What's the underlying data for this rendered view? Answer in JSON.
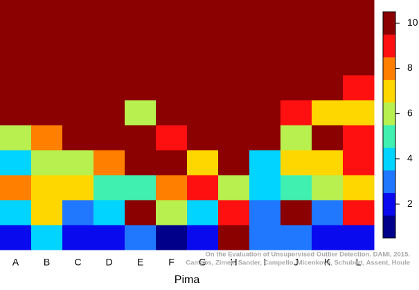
{
  "chart_data": {
    "type": "heatmap",
    "xlabel": "Pima",
    "categories": [
      "A",
      "B",
      "C",
      "D",
      "E",
      "F",
      "G",
      "H",
      "I",
      "J",
      "K",
      "L"
    ],
    "z": [
      [
        2,
        4,
        2,
        2,
        3,
        1,
        2,
        10,
        3,
        3,
        2,
        2
      ],
      [
        4,
        7,
        3,
        4,
        10,
        6,
        4,
        9,
        3,
        10,
        3,
        9
      ],
      [
        8,
        7,
        7,
        5,
        5,
        8,
        9,
        6,
        4,
        5,
        6,
        7
      ],
      [
        4,
        6,
        6,
        8,
        10,
        10,
        7,
        10,
        4,
        7,
        7,
        9
      ],
      [
        6,
        8,
        10,
        10,
        10,
        9,
        10,
        10,
        10,
        6,
        10,
        9
      ],
      [
        10,
        10,
        10,
        10,
        6,
        10,
        10,
        10,
        10,
        9,
        7,
        7
      ],
      [
        10,
        10,
        10,
        10,
        10,
        10,
        10,
        10,
        10,
        10,
        10,
        9
      ],
      [
        10,
        10,
        10,
        10,
        10,
        10,
        10,
        10,
        10,
        10,
        10,
        10
      ],
      [
        10,
        10,
        10,
        10,
        10,
        10,
        10,
        10,
        10,
        10,
        10,
        10
      ],
      [
        10,
        10,
        10,
        10,
        10,
        10,
        10,
        10,
        10,
        10,
        10,
        10
      ]
    ],
    "colors": [
      "#00008b",
      "#0a0aef",
      "#1f78ff",
      "#00d4ff",
      "#40f0b0",
      "#b8f050",
      "#ffd700",
      "#ff7f00",
      "#ff1010",
      "#8b0000"
    ],
    "zlim": [
      0.5,
      10.5
    ],
    "zticks": [
      2,
      4,
      6,
      8,
      10
    ],
    "annotations": [
      "On the Evaluation of Unsupervised Outlier Detection. DAMI, 2015.",
      "Campos, Zimek, Sander, Campello, Micenková, Schubert, Assent, Houle"
    ]
  }
}
